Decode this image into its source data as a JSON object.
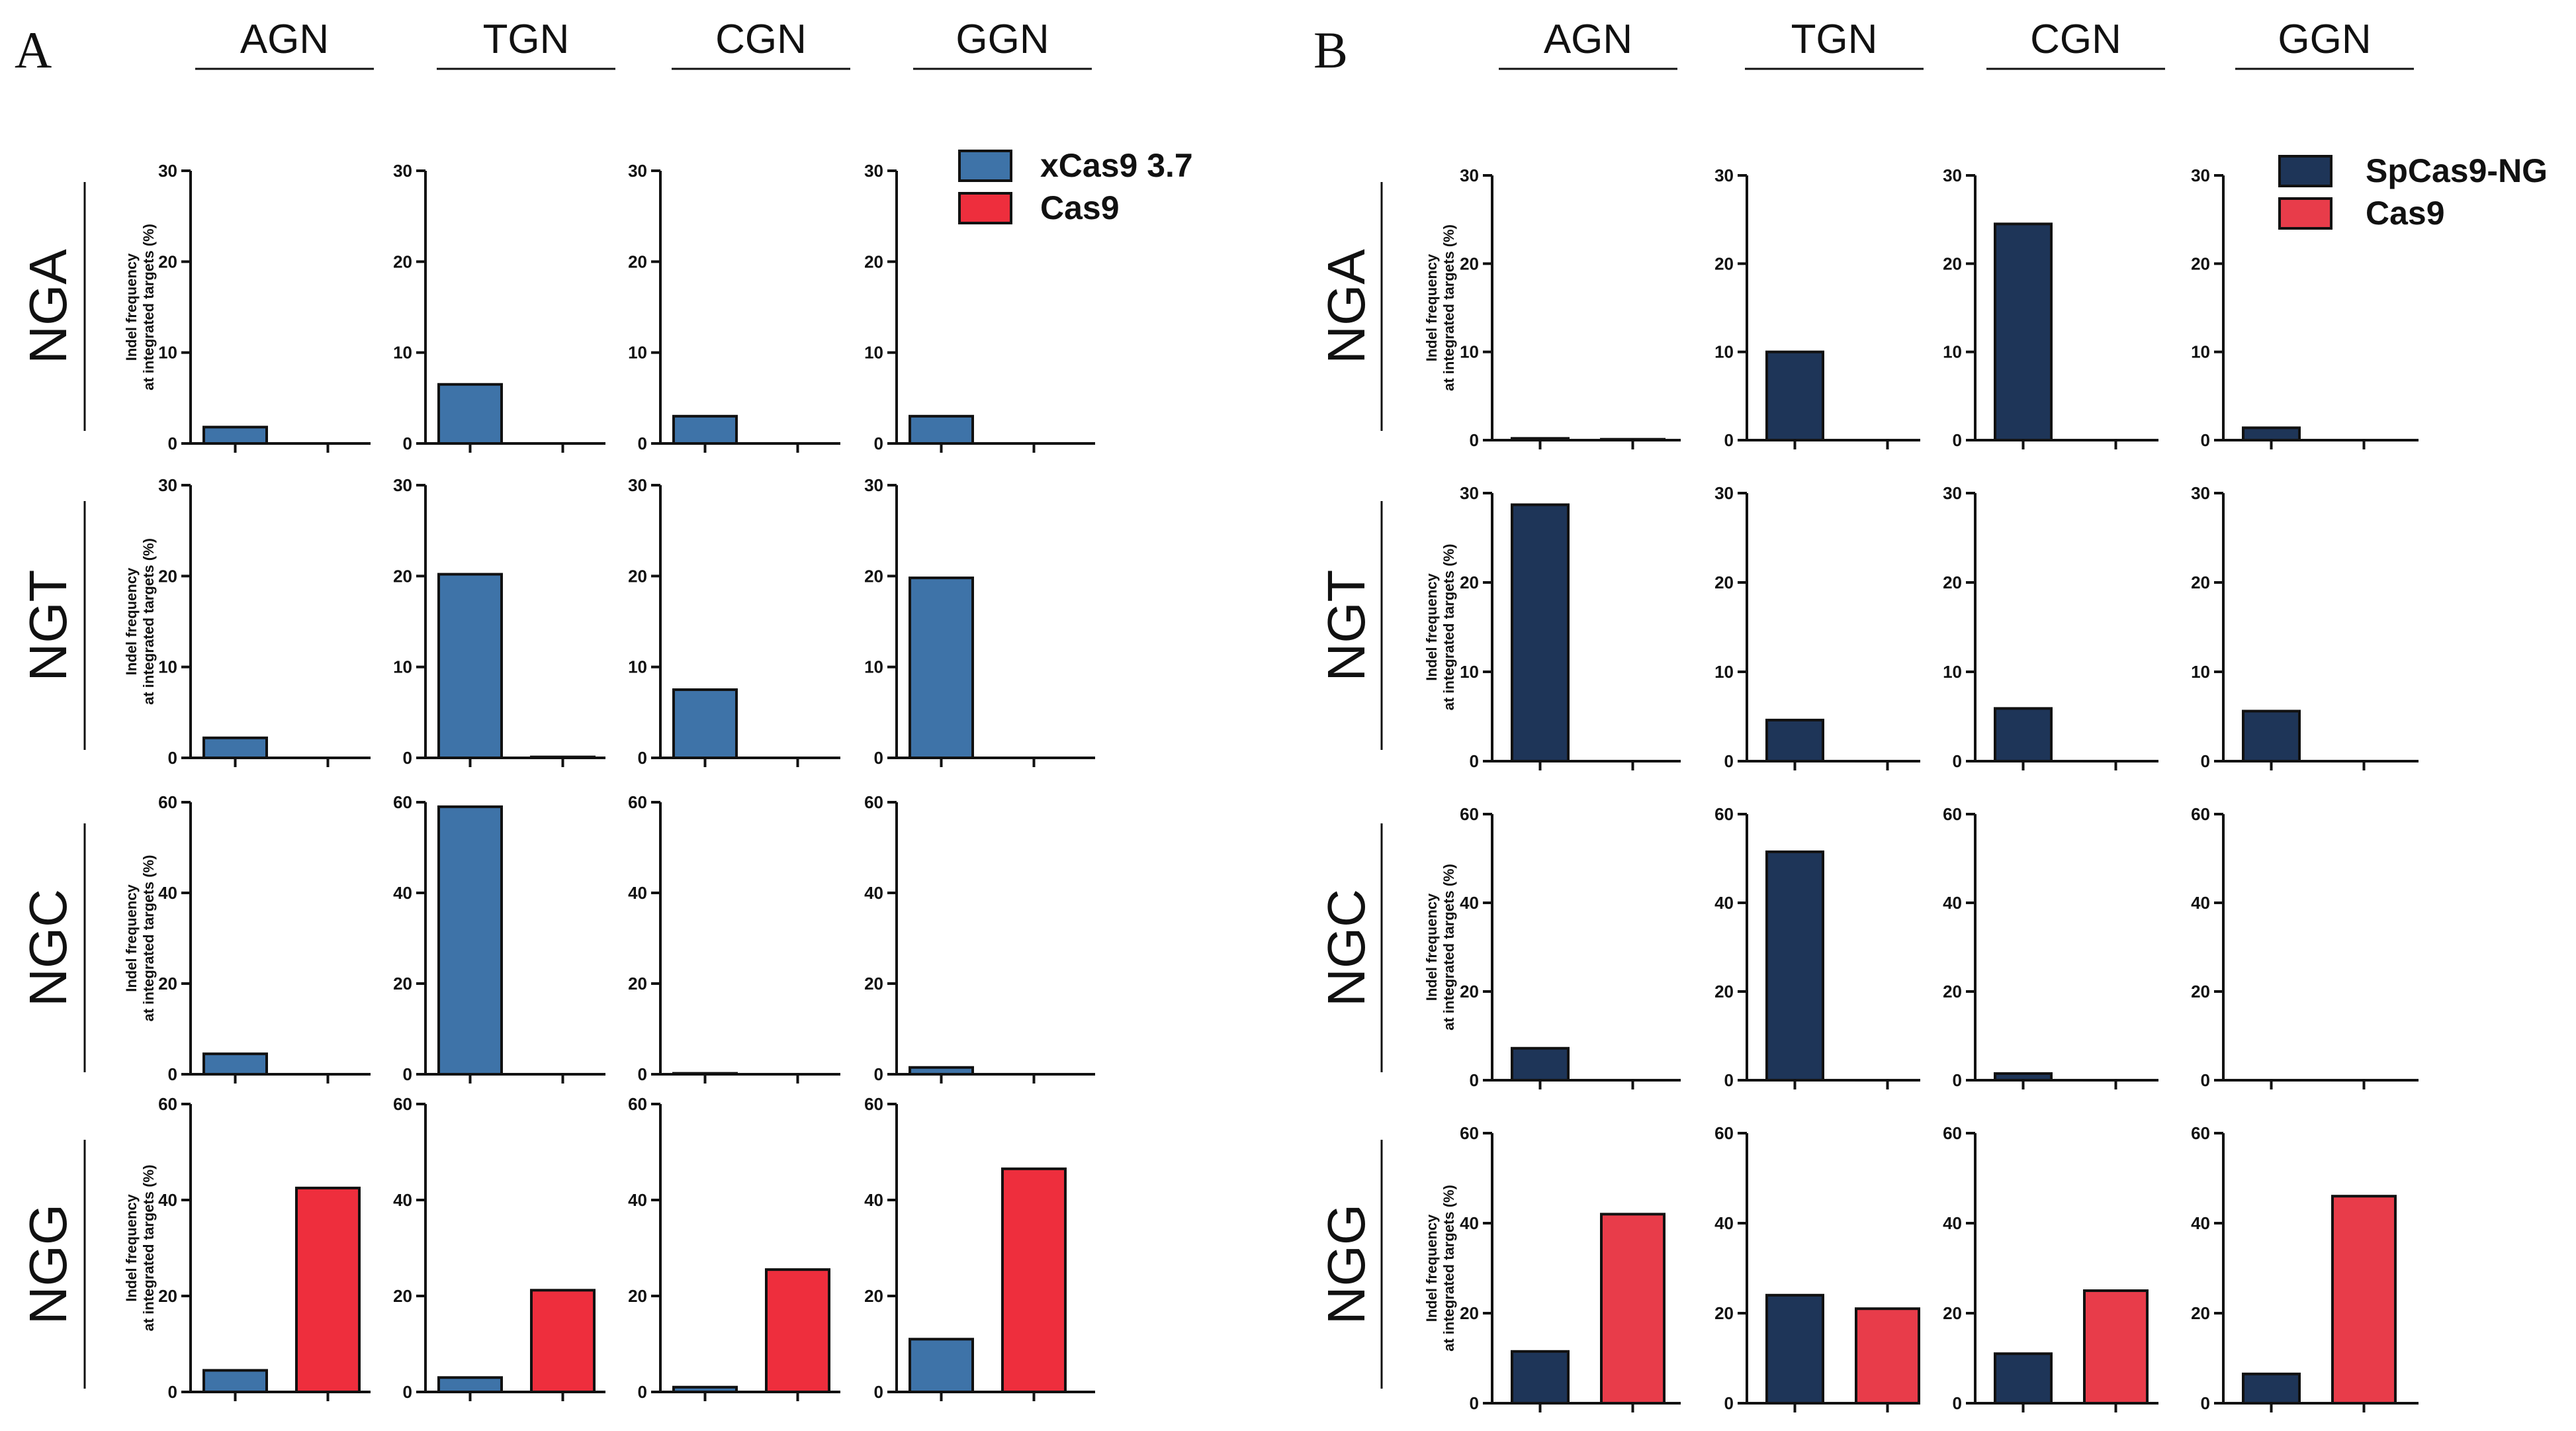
{
  "panels": [
    {
      "id": "A",
      "label": "A",
      "columns": [
        "AGN",
        "TGN",
        "CGN",
        "GGN"
      ],
      "rows": [
        "NGA",
        "NGT",
        "NGC",
        "NGG"
      ],
      "ylabel_line1": "Indel frequency",
      "ylabel_line2": "at integrated targets (%)",
      "legend": [
        {
          "name": "xCas9 3.7",
          "color": "#3E73A8"
        },
        {
          "name": "Cas9",
          "color": "#EE2E3D"
        }
      ]
    },
    {
      "id": "B",
      "label": "B",
      "columns": [
        "AGN",
        "TGN",
        "CGN",
        "GGN"
      ],
      "rows": [
        "NGA",
        "NGT",
        "NGC",
        "NGG"
      ],
      "ylabel_line1": "Indel frequency",
      "ylabel_line2": "at integrated targets (%)",
      "legend": [
        {
          "name": "SpCas9-NG",
          "color": "#1E3558"
        },
        {
          "name": "Cas9",
          "color": "#E83C4A"
        }
      ]
    }
  ],
  "chart_data": [
    {
      "panel": "A",
      "type": "bar",
      "series_names": [
        "xCas9 3.7",
        "Cas9"
      ],
      "ylims": {
        "NGA": [
          0,
          30
        ],
        "NGT": [
          0,
          30
        ],
        "NGC": [
          0,
          60
        ],
        "NGG": [
          0,
          60
        ]
      },
      "yticks": {
        "NGA": [
          0,
          10,
          20,
          30
        ],
        "NGT": [
          0,
          10,
          20,
          30
        ],
        "NGC": [
          0,
          20,
          40,
          60
        ],
        "NGG": [
          0,
          20,
          40,
          60
        ]
      },
      "values": {
        "NGA": {
          "AGN": [
            1.8,
            0
          ],
          "TGN": [
            6.5,
            0
          ],
          "CGN": [
            3.0,
            0
          ],
          "GGN": [
            3.0,
            0
          ]
        },
        "NGT": {
          "AGN": [
            2.2,
            0
          ],
          "TGN": [
            20.2,
            0.1
          ],
          "CGN": [
            7.5,
            0
          ],
          "GGN": [
            19.8,
            0
          ]
        },
        "NGC": {
          "AGN": [
            4.5,
            0
          ],
          "TGN": [
            59,
            0
          ],
          "CGN": [
            0.2,
            0
          ],
          "GGN": [
            1.5,
            0
          ]
        },
        "NGG": {
          "AGN": [
            4.5,
            42.5
          ],
          "TGN": [
            3.0,
            21.2
          ],
          "CGN": [
            1.0,
            25.5
          ],
          "GGN": [
            11.0,
            46.5
          ]
        }
      }
    },
    {
      "panel": "B",
      "type": "bar",
      "series_names": [
        "SpCas9-NG",
        "Cas9"
      ],
      "ylims": {
        "NGA": [
          0,
          30
        ],
        "NGT": [
          0,
          30
        ],
        "NGC": [
          0,
          60
        ],
        "NGG": [
          0,
          60
        ]
      },
      "yticks": {
        "NGA": [
          0,
          10,
          20,
          30
        ],
        "NGT": [
          0,
          10,
          20,
          30
        ],
        "NGC": [
          0,
          20,
          40,
          60
        ],
        "NGG": [
          0,
          20,
          40,
          60
        ]
      },
      "values": {
        "NGA": {
          "AGN": [
            0.2,
            0.1
          ],
          "TGN": [
            10.0,
            0
          ],
          "CGN": [
            24.5,
            0
          ],
          "GGN": [
            1.4,
            0
          ]
        },
        "NGT": {
          "AGN": [
            28.7,
            0
          ],
          "TGN": [
            4.6,
            0
          ],
          "CGN": [
            5.9,
            0
          ],
          "GGN": [
            5.6,
            0
          ]
        },
        "NGC": {
          "AGN": [
            7.2,
            0
          ],
          "TGN": [
            51.5,
            0
          ],
          "CGN": [
            1.5,
            0
          ],
          "GGN": [
            0,
            0
          ]
        },
        "NGG": {
          "AGN": [
            11.5,
            42.0
          ],
          "TGN": [
            24.0,
            21.0
          ],
          "CGN": [
            11.0,
            25.0
          ],
          "GGN": [
            6.5,
            46.0
          ]
        }
      }
    }
  ]
}
